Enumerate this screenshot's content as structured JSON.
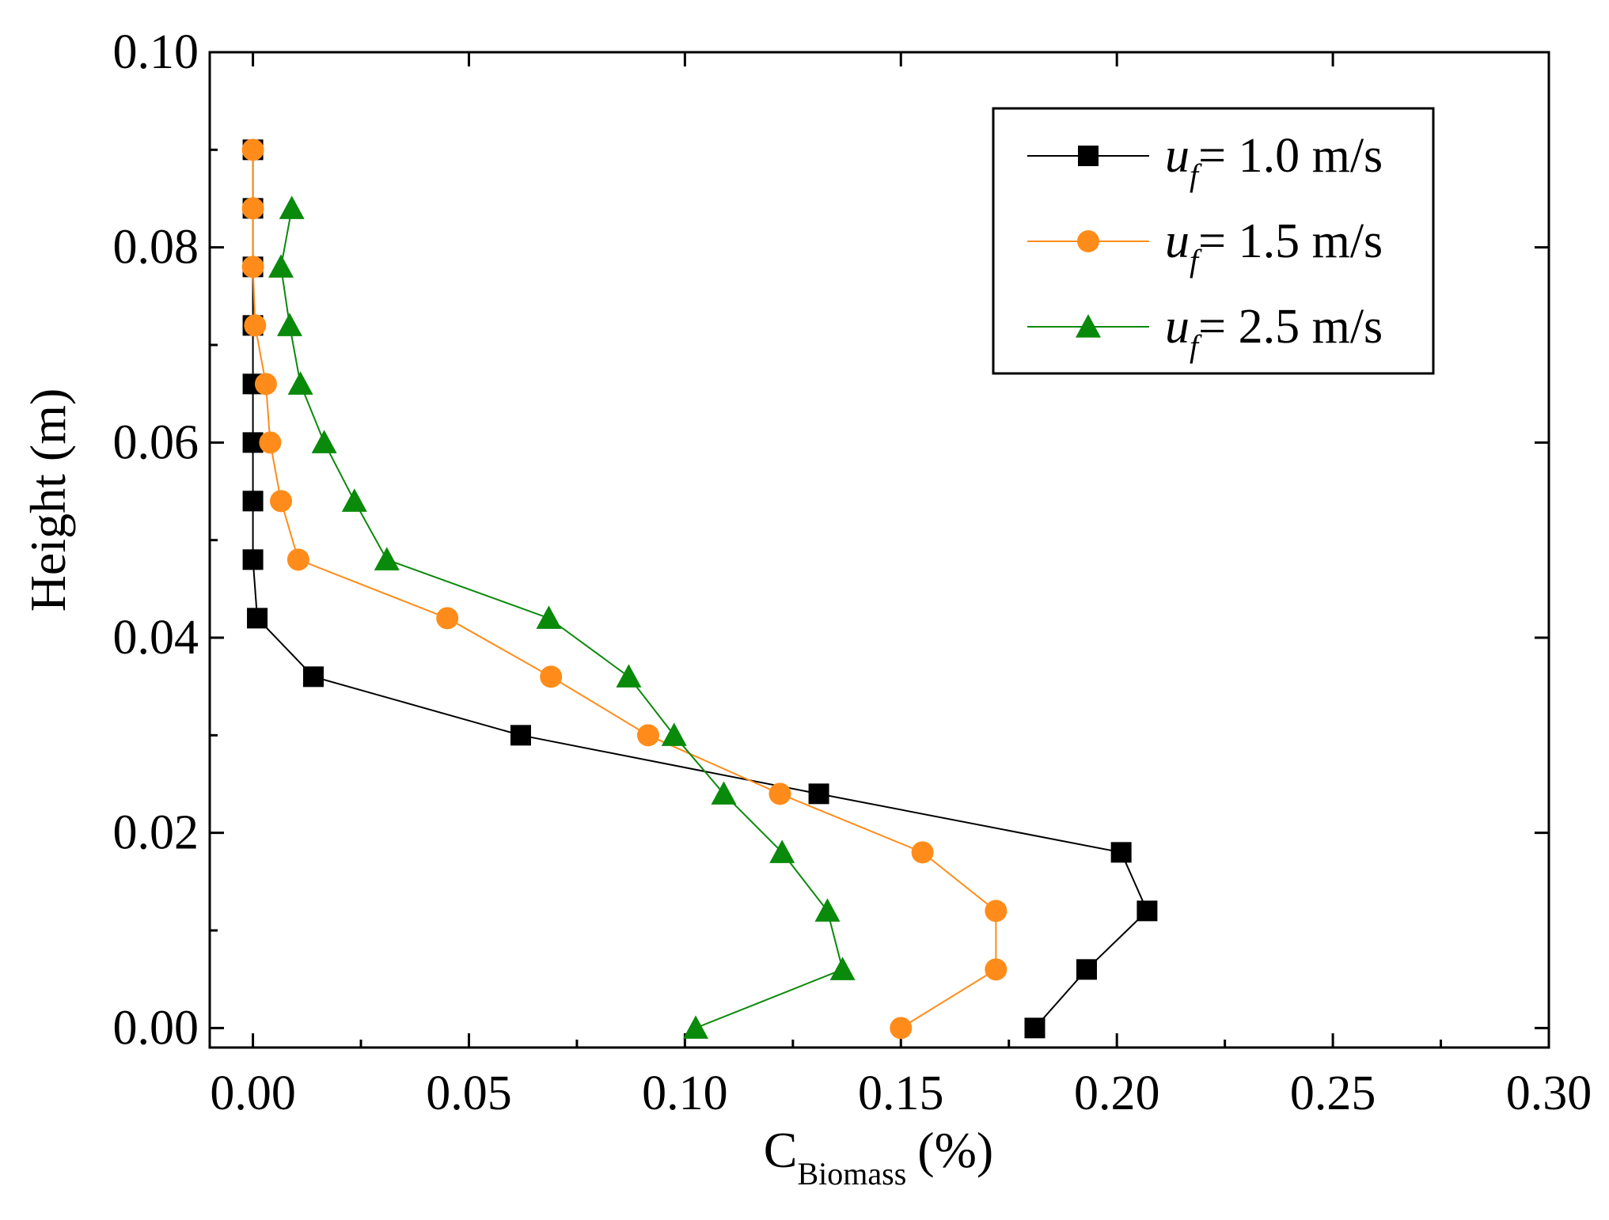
{
  "chart_data": {
    "type": "line",
    "title": "",
    "xlabel": {
      "main": "C",
      "subscript": "Biomass",
      "unit": "(%)"
    },
    "ylabel": "Height (m)",
    "xlim": [
      -0.01,
      0.3
    ],
    "ylim": [
      -0.002,
      0.1
    ],
    "x_ticks": [
      0.0,
      0.05,
      0.1,
      0.15,
      0.2,
      0.25,
      0.3
    ],
    "x_tick_labels": [
      "0.00",
      "0.05",
      "0.10",
      "0.15",
      "0.20",
      "0.25",
      "0.30"
    ],
    "y_ticks": [
      0.0,
      0.02,
      0.04,
      0.06,
      0.08,
      0.1
    ],
    "y_tick_labels": [
      "0.00",
      "0.02",
      "0.04",
      "0.06",
      "0.08",
      "0.10"
    ],
    "grid": false,
    "legend_position": "top-right",
    "series": [
      {
        "name": "u_f = 1.0 m/s",
        "legend_var": "u",
        "legend_sub": "f",
        "legend_value": "= 1.0 m/s",
        "marker": "square",
        "color": "#000000",
        "x": [
          0.0,
          0.0,
          0.0,
          0.0,
          0.0,
          0.0,
          0.0,
          0.0,
          0.001,
          0.014,
          0.062,
          0.131,
          0.201,
          0.207,
          0.193,
          0.181
        ],
        "y": [
          0.09,
          0.084,
          0.078,
          0.072,
          0.066,
          0.06,
          0.054,
          0.048,
          0.042,
          0.036,
          0.03,
          0.024,
          0.018,
          0.012,
          0.006,
          0.0
        ]
      },
      {
        "name": "u_f = 1.5 m/s",
        "legend_var": "u",
        "legend_sub": "f",
        "legend_value": "= 1.5 m/s",
        "marker": "circle",
        "color": "#FF8C1A",
        "x": [
          0.0,
          0.0,
          0.0,
          0.0005,
          0.003,
          0.004,
          0.0065,
          0.0105,
          0.045,
          0.069,
          0.0915,
          0.122,
          0.155,
          0.172,
          0.172,
          0.15
        ],
        "y": [
          0.09,
          0.084,
          0.078,
          0.072,
          0.066,
          0.06,
          0.054,
          0.048,
          0.042,
          0.036,
          0.03,
          0.024,
          0.018,
          0.012,
          0.006,
          0.0
        ]
      },
      {
        "name": "u_f = 2.5 m/s",
        "legend_var": "u",
        "legend_sub": "f",
        "legend_value": "= 2.5 m/s",
        "marker": "triangle",
        "color": "#0A8A0A",
        "x": [
          0.009,
          0.0065,
          0.0085,
          0.011,
          0.0165,
          0.0235,
          0.031,
          0.0685,
          0.087,
          0.0975,
          0.109,
          0.1225,
          0.133,
          0.1365,
          0.1025
        ],
        "y": [
          0.084,
          0.078,
          0.072,
          0.066,
          0.06,
          0.054,
          0.048,
          0.042,
          0.036,
          0.03,
          0.024,
          0.018,
          0.012,
          0.006,
          0.0
        ]
      }
    ]
  }
}
